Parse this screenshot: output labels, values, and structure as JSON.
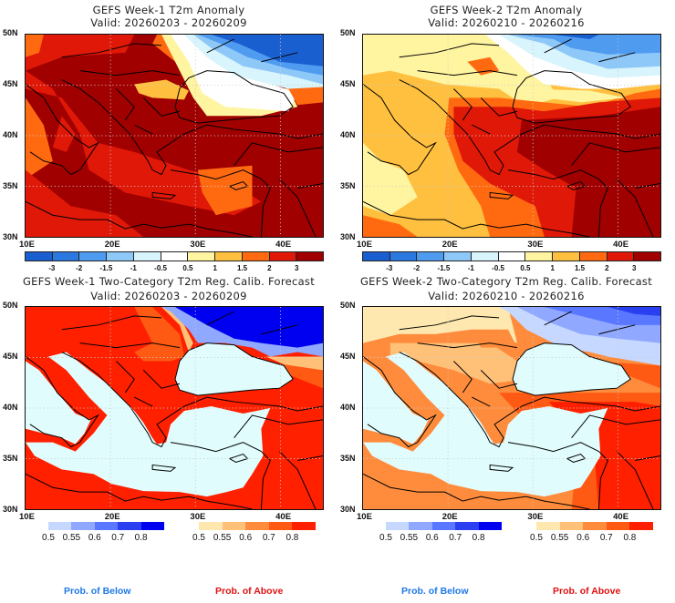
{
  "panels": [
    {
      "title": "GEFS Week-1 T2m Anomaly",
      "valid": "Valid: 20260203 - 20260209"
    },
    {
      "title": "GEFS Week-2 T2m Anomaly",
      "valid": "Valid: 20260210 - 20260216"
    },
    {
      "title": "GEFS Week-1 Two-Category T2m Reg. Calib. Forecast",
      "valid": "Valid: 20260203 - 20260209"
    },
    {
      "title": "GEFS Week-2 Two-Category T2m Reg. Calib. Forecast",
      "valid": "Valid: 20260210 - 20260216"
    }
  ],
  "axes": {
    "lat_ticks": [
      "50N",
      "45N",
      "40N",
      "35N",
      "30N"
    ],
    "lon_ticks": [
      "10E",
      "20E",
      "30E",
      "40E"
    ]
  },
  "anomaly_colorbar": {
    "labels": [
      "-3",
      "-2",
      "-1.5",
      "-1",
      "-0.5",
      "0.5",
      "1",
      "1.5",
      "2",
      "3"
    ],
    "colors": [
      "#1a5fd0",
      "#2a78e0",
      "#4f9bf0",
      "#8ec8f8",
      "#d8f4fc",
      "#ffffff",
      "#fff4a0",
      "#ffc040",
      "#ff6a10",
      "#e01808",
      "#a00000"
    ]
  },
  "prob_below_colorbar": {
    "labels": [
      "0.5",
      "0.55",
      "0.6",
      "0.7",
      "0.8"
    ],
    "colors": [
      "#c6d8ff",
      "#90a8ff",
      "#5a78ff",
      "#2a40f0",
      "#0000f0"
    ],
    "caption": "Prob. of Below",
    "caption_color": "#1e78e6"
  },
  "prob_above_colorbar": {
    "labels": [
      "0.5",
      "0.55",
      "0.6",
      "0.7",
      "0.8"
    ],
    "colors": [
      "#ffe8b0",
      "#ffc078",
      "#ff8c3c",
      "#ff5a14",
      "#ff2000"
    ],
    "caption": "Prob. of Above",
    "caption_color": "#e01010"
  },
  "chart_data": [
    {
      "type": "heatmap",
      "title": "GEFS Week-1 T2m Anomaly",
      "subtitle": "Valid: 20260203 - 20260209",
      "xlim": [
        10,
        45
      ],
      "ylim": [
        30,
        50
      ],
      "xlabel": "",
      "ylabel": "",
      "grid": true
    },
    {
      "type": "heatmap",
      "title": "GEFS Week-2 T2m Anomaly",
      "subtitle": "Valid: 20260210 - 20260216",
      "xlim": [
        10,
        45
      ],
      "ylim": [
        30,
        50
      ],
      "xlabel": "",
      "ylabel": "",
      "grid": true
    },
    {
      "type": "heatmap",
      "title": "GEFS Week-1 Two-Category T2m Reg. Calib. Forecast",
      "subtitle": "Valid: 20260203 - 20260209",
      "xlim": [
        10,
        45
      ],
      "ylim": [
        30,
        50
      ],
      "grid": true
    },
    {
      "type": "heatmap",
      "title": "GEFS Week-2 Two-Category T2m Reg. Calib. Forecast",
      "subtitle": "Valid: 20260210 - 20260216",
      "xlim": [
        10,
        45
      ],
      "ylim": [
        30,
        50
      ],
      "grid": true
    }
  ]
}
